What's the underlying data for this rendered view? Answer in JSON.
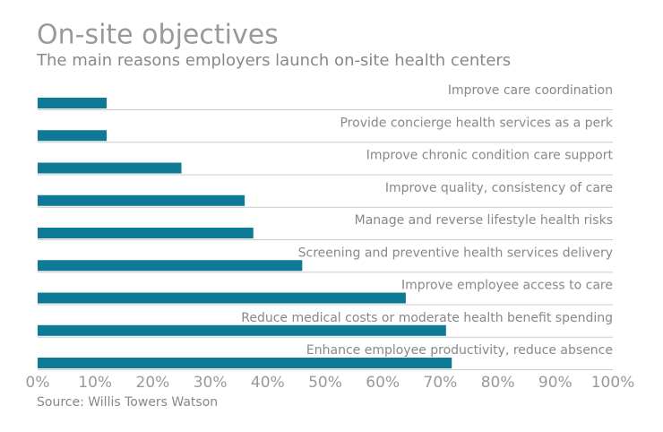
{
  "chart_data": {
    "type": "hbar",
    "title": "On-site objectives",
    "subtitle": "The main reasons employers launch on-site health centers",
    "source": "Source: Willis Towers Watson",
    "categories": [
      "Improve care coordination",
      "Provide concierge health services as a perk",
      "Improve chronic condition care support",
      "Improve quality, consistency of care",
      "Manage and reverse lifestyle health risks",
      "Screening and preventive health services delivery",
      "Improve employee access to care",
      "Reduce medical costs or moderate health benefit spending",
      "Enhance employee productivity, reduce absence"
    ],
    "values": [
      12,
      12,
      25,
      36,
      37.5,
      46,
      64,
      71,
      72
    ],
    "color": "#0e7a96",
    "xlim": [
      0,
      100
    ],
    "xticks": [
      {
        "value": 0,
        "label": "0%"
      },
      {
        "value": 10,
        "label": "10%"
      },
      {
        "value": 20,
        "label": "20%"
      },
      {
        "value": 30,
        "label": "30%"
      },
      {
        "value": 40,
        "label": "40%"
      },
      {
        "value": 50,
        "label": "50%"
      },
      {
        "value": 60,
        "label": "60%"
      },
      {
        "value": 70,
        "label": "70%"
      },
      {
        "value": 80,
        "label": "80%"
      },
      {
        "value": 90,
        "label": "90%"
      },
      {
        "value": 100,
        "label": "100%"
      }
    ]
  }
}
